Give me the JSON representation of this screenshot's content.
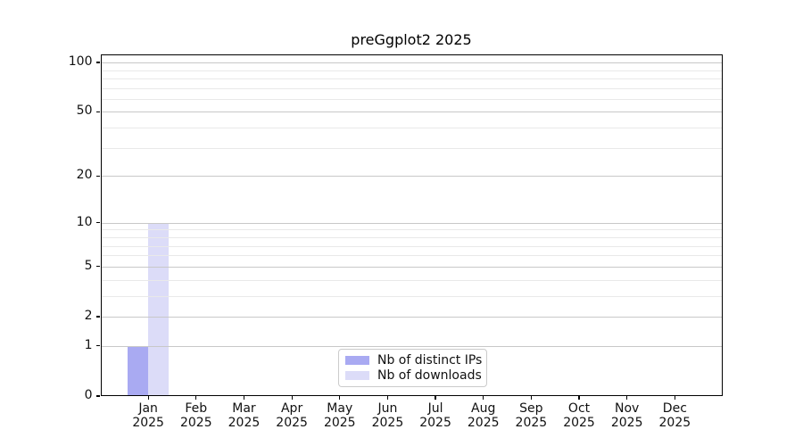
{
  "chart_data": {
    "type": "bar",
    "title": "preGgplot2 2025",
    "x_categories": [
      {
        "month": "Jan",
        "year": "2025"
      },
      {
        "month": "Feb",
        "year": "2025"
      },
      {
        "month": "Mar",
        "year": "2025"
      },
      {
        "month": "Apr",
        "year": "2025"
      },
      {
        "month": "May",
        "year": "2025"
      },
      {
        "month": "Jun",
        "year": "2025"
      },
      {
        "month": "Jul",
        "year": "2025"
      },
      {
        "month": "Aug",
        "year": "2025"
      },
      {
        "month": "Sep",
        "year": "2025"
      },
      {
        "month": "Oct",
        "year": "2025"
      },
      {
        "month": "Nov",
        "year": "2025"
      },
      {
        "month": "Dec",
        "year": "2025"
      }
    ],
    "series": [
      {
        "name": "Nb of distinct IPs",
        "color": "#a9aaf2",
        "values": [
          1,
          0,
          0,
          0,
          0,
          0,
          0,
          0,
          0,
          0,
          0,
          0
        ]
      },
      {
        "name": "Nb of downloads",
        "color": "#dcdcf8",
        "values": [
          10,
          0,
          0,
          0,
          0,
          0,
          0,
          0,
          0,
          0,
          0,
          0
        ]
      }
    ],
    "y_axis": {
      "scale": "log1p",
      "ylim": [
        0,
        112
      ],
      "major_ticks": [
        0,
        1,
        2,
        5,
        10,
        20,
        50,
        100
      ],
      "minor_ticks": [
        3,
        4,
        6,
        7,
        8,
        9,
        30,
        40,
        60,
        70,
        80,
        90
      ]
    },
    "grid": {
      "major_color": "#c8c8c8",
      "minor_color": "#e9e9e9"
    },
    "legend": {
      "location": "lower center inside plot"
    },
    "colors": {
      "spine": "#000000",
      "tick_label": "#111111",
      "background": "#ffffff"
    }
  }
}
